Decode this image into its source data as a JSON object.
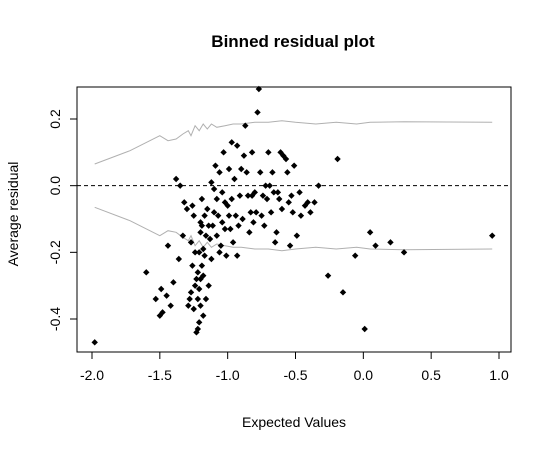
{
  "chart_data": {
    "type": "scatter",
    "title": "Binned residual plot",
    "xlabel": "Expected Values",
    "ylabel": "Average residual",
    "xlim": [
      -2.0,
      1.0
    ],
    "ylim": [
      -0.5,
      0.3
    ],
    "xticks": [
      "-2.0",
      "-1.5",
      "-1.0",
      "-0.5",
      "0.0",
      "0.5",
      "1.0"
    ],
    "xtick_values": [
      -2.0,
      -1.5,
      -1.0,
      -0.5,
      0.0,
      0.5,
      1.0
    ],
    "yticks": [
      "-0.4",
      "-0.2",
      "0.0",
      "0.2"
    ],
    "ytick_values": [
      -0.4,
      -0.2,
      0.0,
      0.2
    ],
    "reference_line": 0.0,
    "colors": {
      "points": "#000000",
      "bounds": "#b0b0b0",
      "frame": "#000000"
    },
    "upper_bound": [
      [
        -1.98,
        0.065
      ],
      [
        -1.72,
        0.105
      ],
      [
        -1.5,
        0.15
      ],
      [
        -1.44,
        0.135
      ],
      [
        -1.38,
        0.14
      ],
      [
        -1.33,
        0.155
      ],
      [
        -1.29,
        0.165
      ],
      [
        -1.27,
        0.15
      ],
      [
        -1.24,
        0.18
      ],
      [
        -1.21,
        0.165
      ],
      [
        -1.18,
        0.185
      ],
      [
        -1.15,
        0.17
      ],
      [
        -1.12,
        0.185
      ],
      [
        -1.08,
        0.175
      ],
      [
        -1.02,
        0.18
      ],
      [
        -0.96,
        0.185
      ],
      [
        -0.9,
        0.185
      ],
      [
        -0.8,
        0.19
      ],
      [
        -0.7,
        0.19
      ],
      [
        -0.6,
        0.195
      ],
      [
        -0.5,
        0.19
      ],
      [
        -0.35,
        0.185
      ],
      [
        -0.2,
        0.19
      ],
      [
        -0.05,
        0.185
      ],
      [
        0.05,
        0.19
      ],
      [
        0.3,
        0.192
      ],
      [
        0.95,
        0.19
      ]
    ],
    "lower_bound": [
      [
        -1.98,
        -0.065
      ],
      [
        -1.72,
        -0.105
      ],
      [
        -1.5,
        -0.15
      ],
      [
        -1.44,
        -0.135
      ],
      [
        -1.38,
        -0.14
      ],
      [
        -1.33,
        -0.155
      ],
      [
        -1.29,
        -0.165
      ],
      [
        -1.27,
        -0.15
      ],
      [
        -1.24,
        -0.18
      ],
      [
        -1.21,
        -0.165
      ],
      [
        -1.18,
        -0.185
      ],
      [
        -1.15,
        -0.17
      ],
      [
        -1.12,
        -0.185
      ],
      [
        -1.08,
        -0.175
      ],
      [
        -1.02,
        -0.18
      ],
      [
        -0.96,
        -0.185
      ],
      [
        -0.9,
        -0.185
      ],
      [
        -0.8,
        -0.19
      ],
      [
        -0.7,
        -0.19
      ],
      [
        -0.6,
        -0.195
      ],
      [
        -0.5,
        -0.19
      ],
      [
        -0.35,
        -0.185
      ],
      [
        -0.2,
        -0.19
      ],
      [
        -0.05,
        -0.185
      ],
      [
        0.05,
        -0.19
      ],
      [
        0.3,
        -0.192
      ],
      [
        0.95,
        -0.19
      ]
    ],
    "points": [
      [
        -1.98,
        -0.47
      ],
      [
        -1.6,
        -0.26
      ],
      [
        -1.53,
        -0.34
      ],
      [
        -1.5,
        -0.39
      ],
      [
        -1.49,
        -0.31
      ],
      [
        -1.48,
        -0.38
      ],
      [
        -1.45,
        -0.33
      ],
      [
        -1.44,
        -0.18
      ],
      [
        -1.42,
        -0.36
      ],
      [
        -1.4,
        -0.29
      ],
      [
        -1.38,
        0.02
      ],
      [
        -1.36,
        -0.22
      ],
      [
        -1.35,
        0.0
      ],
      [
        -1.33,
        -0.15
      ],
      [
        -1.32,
        -0.05
      ],
      [
        -1.3,
        -0.07
      ],
      [
        -1.29,
        -0.36
      ],
      [
        -1.28,
        -0.34
      ],
      [
        -1.27,
        -0.17
      ],
      [
        -1.27,
        -0.32
      ],
      [
        -1.26,
        -0.06
      ],
      [
        -1.26,
        -0.24
      ],
      [
        -1.25,
        -0.37
      ],
      [
        -1.25,
        -0.09
      ],
      [
        -1.24,
        -0.2
      ],
      [
        -1.24,
        -0.3
      ],
      [
        -1.23,
        -0.28
      ],
      [
        -1.23,
        -0.44
      ],
      [
        -1.22,
        -0.43
      ],
      [
        -1.22,
        -0.26
      ],
      [
        -1.22,
        -0.34
      ],
      [
        -1.21,
        -0.41
      ],
      [
        -1.21,
        -0.31
      ],
      [
        -1.21,
        -0.2
      ],
      [
        -1.2,
        -0.36
      ],
      [
        -1.2,
        -0.28
      ],
      [
        -1.2,
        -0.14
      ],
      [
        -1.2,
        -0.11
      ],
      [
        -1.19,
        -0.04
      ],
      [
        -1.19,
        -0.24
      ],
      [
        -1.19,
        -0.12
      ],
      [
        -1.18,
        -0.39
      ],
      [
        -1.18,
        -0.27
      ],
      [
        -1.18,
        -0.19
      ],
      [
        -1.17,
        -0.09
      ],
      [
        -1.17,
        -0.21
      ],
      [
        -1.16,
        -0.34
      ],
      [
        -1.16,
        -0.15
      ],
      [
        -1.15,
        -0.07
      ],
      [
        -1.14,
        -0.12
      ],
      [
        -1.14,
        -0.3
      ],
      [
        -1.13,
        -0.16
      ],
      [
        -1.12,
        0.01
      ],
      [
        -1.12,
        -0.22
      ],
      [
        -1.11,
        -0.12
      ],
      [
        -1.1,
        -0.01
      ],
      [
        -1.1,
        -0.08
      ],
      [
        -1.09,
        0.06
      ],
      [
        -1.08,
        -0.04
      ],
      [
        -1.08,
        -0.15
      ],
      [
        -1.07,
        -0.09
      ],
      [
        -1.06,
        0.04
      ],
      [
        -1.06,
        -0.2
      ],
      [
        -1.05,
        -0.18
      ],
      [
        -1.04,
        -0.02
      ],
      [
        -1.04,
        -0.11
      ],
      [
        -1.03,
        0.1
      ],
      [
        -1.02,
        -0.05
      ],
      [
        -1.02,
        -0.13
      ],
      [
        -1.01,
        -0.21
      ],
      [
        -1.0,
        -0.06
      ],
      [
        -0.99,
        0.05
      ],
      [
        -0.99,
        -0.09
      ],
      [
        -0.98,
        -0.13
      ],
      [
        -0.97,
        0.13
      ],
      [
        -0.97,
        -0.04
      ],
      [
        -0.96,
        -0.17
      ],
      [
        -0.95,
        0.02
      ],
      [
        -0.94,
        -0.09
      ],
      [
        -0.93,
        -0.21
      ],
      [
        -0.93,
        0.12
      ],
      [
        -0.92,
        -0.12
      ],
      [
        -0.91,
        -0.03
      ],
      [
        -0.9,
        0.05
      ],
      [
        -0.89,
        -0.1
      ],
      [
        -0.88,
        0.09
      ],
      [
        -0.87,
        0.18
      ],
      [
        -0.86,
        0.04
      ],
      [
        -0.85,
        -0.03
      ],
      [
        -0.84,
        -0.14
      ],
      [
        -0.83,
        -0.08
      ],
      [
        -0.82,
        0.1
      ],
      [
        -0.82,
        -0.03
      ],
      [
        -0.81,
        -0.11
      ],
      [
        -0.8,
        -0.02
      ],
      [
        -0.79,
        -0.08
      ],
      [
        -0.78,
        0.22
      ],
      [
        -0.77,
        0.29
      ],
      [
        -0.76,
        0.04
      ],
      [
        -0.75,
        -0.09
      ],
      [
        -0.74,
        -0.03
      ],
      [
        -0.73,
        -0.12
      ],
      [
        -0.72,
        0.0
      ],
      [
        -0.71,
        -0.04
      ],
      [
        -0.7,
        0.1
      ],
      [
        -0.69,
        0.0
      ],
      [
        -0.68,
        -0.08
      ],
      [
        -0.67,
        0.04
      ],
      [
        -0.66,
        -0.02
      ],
      [
        -0.65,
        -0.17
      ],
      [
        -0.64,
        -0.14
      ],
      [
        -0.63,
        -0.02
      ],
      [
        -0.62,
        -0.04
      ],
      [
        -0.61,
        0.1
      ],
      [
        -0.6,
        -0.07
      ],
      [
        -0.59,
        0.09
      ],
      [
        -0.57,
        0.08
      ],
      [
        -0.56,
        0.04
      ],
      [
        -0.55,
        -0.05
      ],
      [
        -0.54,
        -0.18
      ],
      [
        -0.53,
        -0.03
      ],
      [
        -0.52,
        -0.08
      ],
      [
        -0.51,
        0.06
      ],
      [
        -0.49,
        -0.15
      ],
      [
        -0.47,
        -0.02
      ],
      [
        -0.46,
        -0.09
      ],
      [
        -0.43,
        -0.06
      ],
      [
        -0.41,
        -0.05
      ],
      [
        -0.39,
        -0.08
      ],
      [
        -0.36,
        -0.05
      ],
      [
        -0.33,
        0.0
      ],
      [
        -0.26,
        -0.27
      ],
      [
        -0.19,
        0.08
      ],
      [
        -0.15,
        -0.32
      ],
      [
        -0.06,
        -0.21
      ],
      [
        0.01,
        -0.43
      ],
      [
        0.05,
        -0.14
      ],
      [
        0.09,
        -0.18
      ],
      [
        0.2,
        -0.17
      ],
      [
        0.3,
        -0.2
      ],
      [
        0.95,
        -0.15
      ]
    ]
  }
}
